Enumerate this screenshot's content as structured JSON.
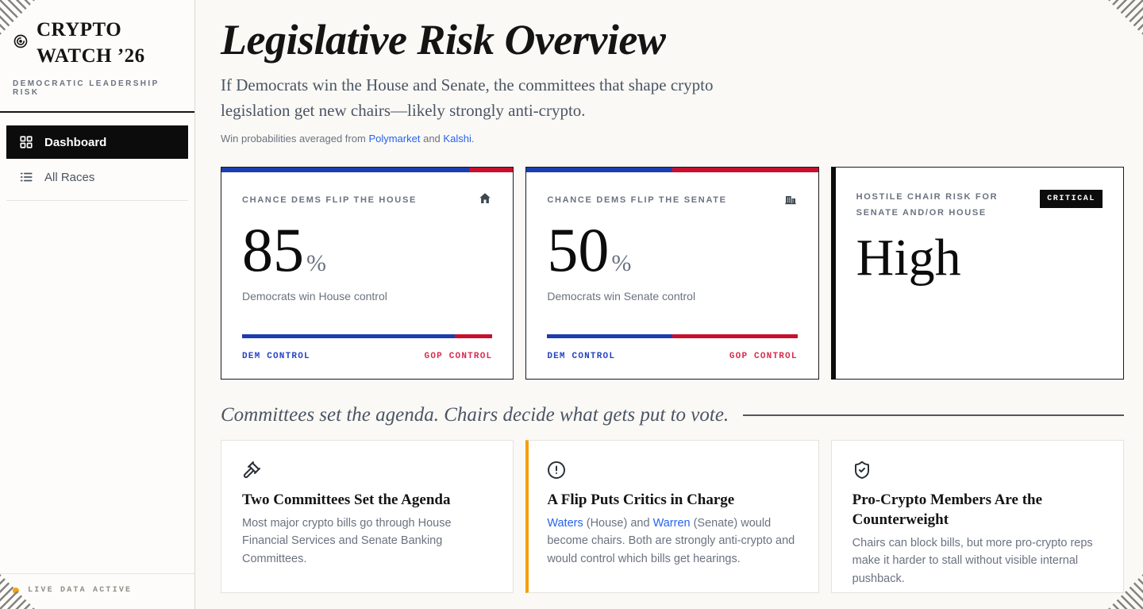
{
  "app": {
    "title_line1": "CRYPTO",
    "title_line2": "WATCH ’26",
    "subtitle": "DEMOCRATIC LEADERSHIP RISK"
  },
  "sidebar": {
    "items": [
      {
        "label": "Dashboard",
        "icon": "grid-icon",
        "active": true
      },
      {
        "label": "All Races",
        "icon": "list-icon",
        "active": false
      }
    ],
    "footer_status": "LIVE DATA ACTIVE"
  },
  "header": {
    "title": "Legislative Risk Overview",
    "subtitle": "If Democrats win the House and Senate, the committees that shape crypto legislation get new chairs—likely strongly anti-crypto.",
    "source_prefix": "Win probabilities averaged from",
    "source_link1": "Polymarket",
    "source_and": "and",
    "source_link2": "Kalshi",
    "source_period": "."
  },
  "stat_cards": [
    {
      "label": "CHANCE DEMS FLIP THE HOUSE",
      "icon": "house-icon",
      "value": "85",
      "unit": "%",
      "dem_pct": 85,
      "description": "Democrats win House control",
      "left_label": "DEM CONTROL",
      "right_label": "GOP CONTROL"
    },
    {
      "label": "CHANCE DEMS FLIP THE SENATE",
      "icon": "bank-icon",
      "value": "50",
      "unit": "%",
      "dem_pct": 50,
      "description": "Democrats win Senate control",
      "left_label": "DEM CONTROL",
      "right_label": "GOP CONTROL"
    }
  ],
  "risk_card": {
    "label": "HOSTILE CHAIR RISK FOR SENATE AND/OR HOUSE",
    "badge": "CRITICAL",
    "value": "High"
  },
  "section": {
    "heading": "Committees set the agenda. Chairs decide what gets put to vote."
  },
  "info_cards": [
    {
      "icon": "gavel-icon",
      "title": "Two Committees Set the Agenda",
      "body": [
        {
          "text": "Most major crypto bills go through House Financial Services and Senate Banking Committees."
        }
      ]
    },
    {
      "icon": "alert-icon",
      "title": "A Flip Puts Critics in Charge",
      "body": [
        {
          "link": true,
          "text": "Waters"
        },
        {
          "text": " (House) and "
        },
        {
          "link": true,
          "text": "Warren"
        },
        {
          "text": " (Senate) would become chairs. Both are strongly anti-crypto and would control which bills get hearings."
        }
      ]
    },
    {
      "icon": "shield-icon",
      "title": "Pro-Crypto Members Are the Counterweight",
      "body": [
        {
          "text": "Chairs can block bills, but more pro-crypto reps make it harder to stall without visible internal pushback."
        }
      ]
    }
  ],
  "colors": {
    "dem_blue": "#1d3dae",
    "gop_red": "#c8102e",
    "dem_label_blue": "#2443c4",
    "gop_label_red": "#d92a4e",
    "accent_amber": "#f59e0b",
    "live_dot_yellow": "#f0a41c",
    "link_blue": "#2563eb",
    "badge_black": "#0c0c0c"
  }
}
